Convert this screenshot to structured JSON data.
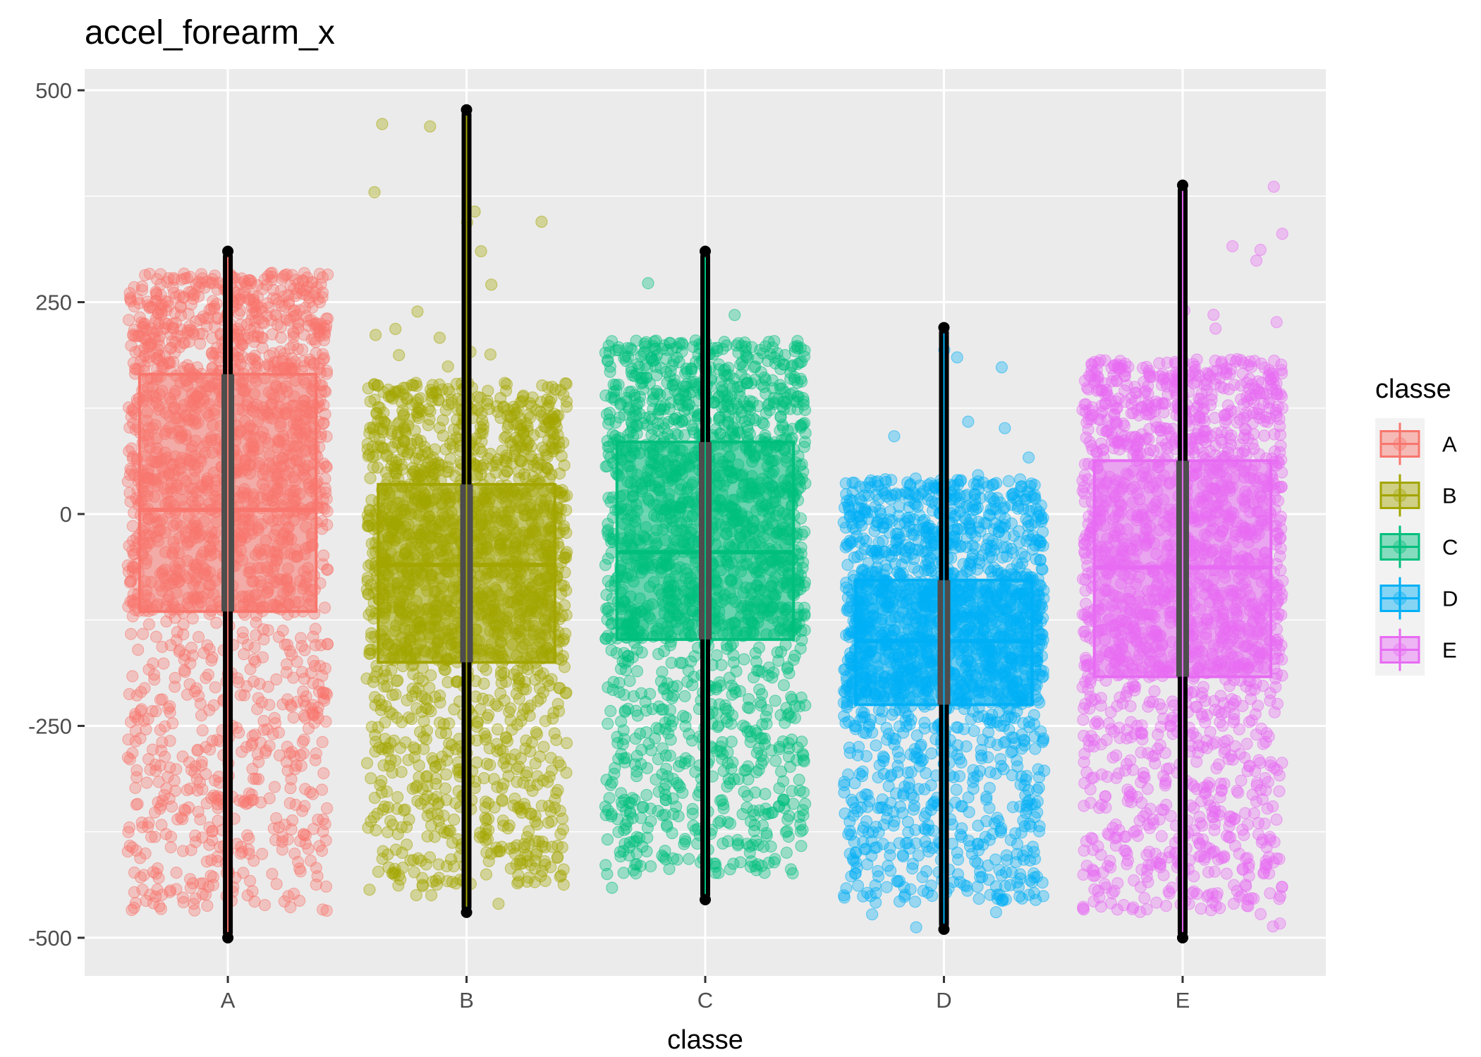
{
  "chart_data": {
    "type": "box+jitter",
    "title": "accel_forearm_x",
    "xlabel": "classe",
    "ylabel": "",
    "ylim": [
      -545,
      525
    ],
    "yticks": [
      -500,
      -250,
      0,
      250,
      500
    ],
    "ytick_labels": [
      "-500",
      "-250",
      "0",
      "250",
      "500"
    ],
    "categories": [
      "A",
      "B",
      "C",
      "D",
      "E"
    ],
    "grid": true,
    "legend": {
      "title": "classe",
      "position": "right",
      "entries": [
        "A",
        "B",
        "C",
        "D",
        "E"
      ]
    },
    "series": [
      {
        "name": "A",
        "color": "#F8766D",
        "box": {
          "q1": -115,
          "median": 5,
          "q3": 165
        },
        "whisker_low": -500,
        "whisker_high": 310,
        "jitter_min": -500,
        "jitter_max": 310
      },
      {
        "name": "B",
        "color": "#A3A500",
        "box": {
          "q1": -175,
          "median": -60,
          "q3": 35
        },
        "whisker_low": -470,
        "whisker_high": 477,
        "jitter_min": -470,
        "jitter_max": 477
      },
      {
        "name": "C",
        "color": "#00BF7D",
        "box": {
          "q1": -148,
          "median": -45,
          "q3": 85
        },
        "whisker_low": -455,
        "whisker_high": 310,
        "jitter_min": -455,
        "jitter_max": 312
      },
      {
        "name": "D",
        "color": "#00B0F6",
        "box": {
          "q1": -225,
          "median": -150,
          "q3": -78
        },
        "whisker_low": -490,
        "whisker_high": 220,
        "jitter_min": -490,
        "jitter_max": 222
      },
      {
        "name": "E",
        "color": "#E76BF3",
        "box": {
          "q1": -192,
          "median": -63,
          "q3": 63
        },
        "whisker_low": -500,
        "whisker_high": 388,
        "jitter_min": -500,
        "jitter_max": 390
      }
    ]
  }
}
